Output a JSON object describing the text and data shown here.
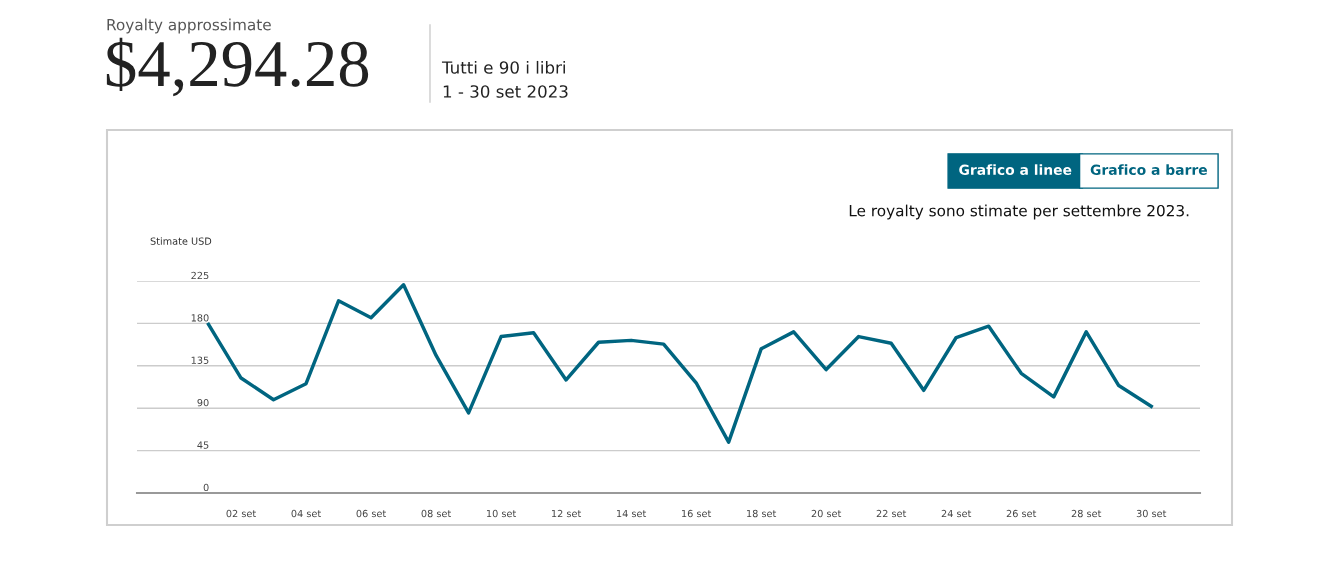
{
  "chart_data": {
    "type": "line",
    "title": "Royalty approssimate",
    "subtitle": "$4,294.28",
    "ylabel": "Stimate USD",
    "annotations": [
      "Tutti e 90 i libri",
      "1 - 30 set 2023",
      "Grafico a linee",
      "Grafico a barre",
      "Le royalty sono stimate per settembre 2023."
    ],
    "x": [
      1,
      2,
      3,
      4,
      5,
      6,
      7,
      8,
      9,
      10,
      11,
      12,
      13,
      14,
      15,
      16,
      17,
      18,
      19,
      20,
      21,
      22,
      23,
      24,
      25,
      26,
      27,
      28,
      29,
      30
    ],
    "series": [
      {
        "color": "#006580",
        "values": [
          179,
          122,
          99,
          116,
          204,
          186,
          221,
          146,
          85,
          166,
          170,
          120,
          160,
          162,
          158,
          117,
          54,
          153,
          171,
          131,
          166,
          159,
          109,
          165,
          177,
          127,
          102,
          171,
          114,
          92
        ]
      }
    ],
    "xlim": [
      -1.2,
      31.5
    ],
    "xticks": [
      {
        "value": 2,
        "label": "02 set"
      },
      {
        "value": 4,
        "label": "04 set"
      },
      {
        "value": 6,
        "label": "06 set"
      },
      {
        "value": 8,
        "label": "08 set"
      },
      {
        "value": 10,
        "label": "10 set"
      },
      {
        "value": 12,
        "label": "12 set"
      },
      {
        "value": 14,
        "label": "14 set"
      },
      {
        "value": 16,
        "label": "16 set"
      },
      {
        "value": 18,
        "label": "18 set"
      },
      {
        "value": 20,
        "label": "20 set"
      },
      {
        "value": 22,
        "label": "22 set"
      },
      {
        "value": 24,
        "label": "24 set"
      },
      {
        "value": 26,
        "label": "26 set"
      },
      {
        "value": 28,
        "label": "28 set"
      },
      {
        "value": 30,
        "label": "30 set"
      }
    ],
    "ylim": [
      0,
      225
    ],
    "yticks": [
      0,
      45,
      90,
      135,
      180,
      225
    ],
    "grid": "y",
    "legend": false,
    "marker": "none",
    "line_style": "solid"
  }
}
